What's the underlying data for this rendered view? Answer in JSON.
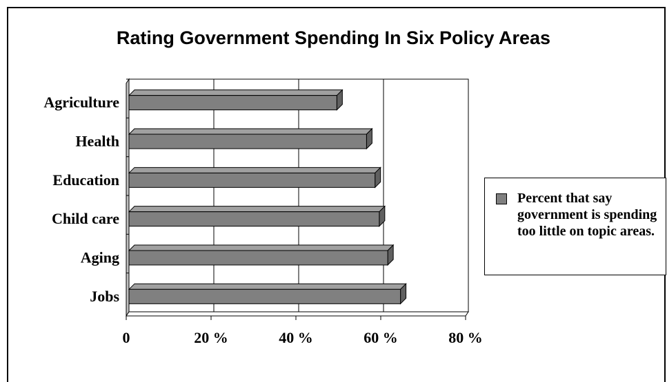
{
  "chart_data": {
    "type": "bar",
    "orientation": "horizontal",
    "title": "Rating Government Spending In Six Policy Areas",
    "categories": [
      "Agriculture",
      "Health",
      "Education",
      "Child care",
      "Aging",
      "Jobs"
    ],
    "series": [
      {
        "name": "Percent that say government is spending too little on topic areas.",
        "values": [
          49,
          56,
          58,
          59,
          61,
          64
        ],
        "color": "#808080"
      }
    ],
    "xlim": [
      0,
      80
    ],
    "xticks": [
      "0",
      "20 %",
      "40 %",
      "60 %",
      "80 %"
    ],
    "grid": true,
    "legend": "right"
  }
}
